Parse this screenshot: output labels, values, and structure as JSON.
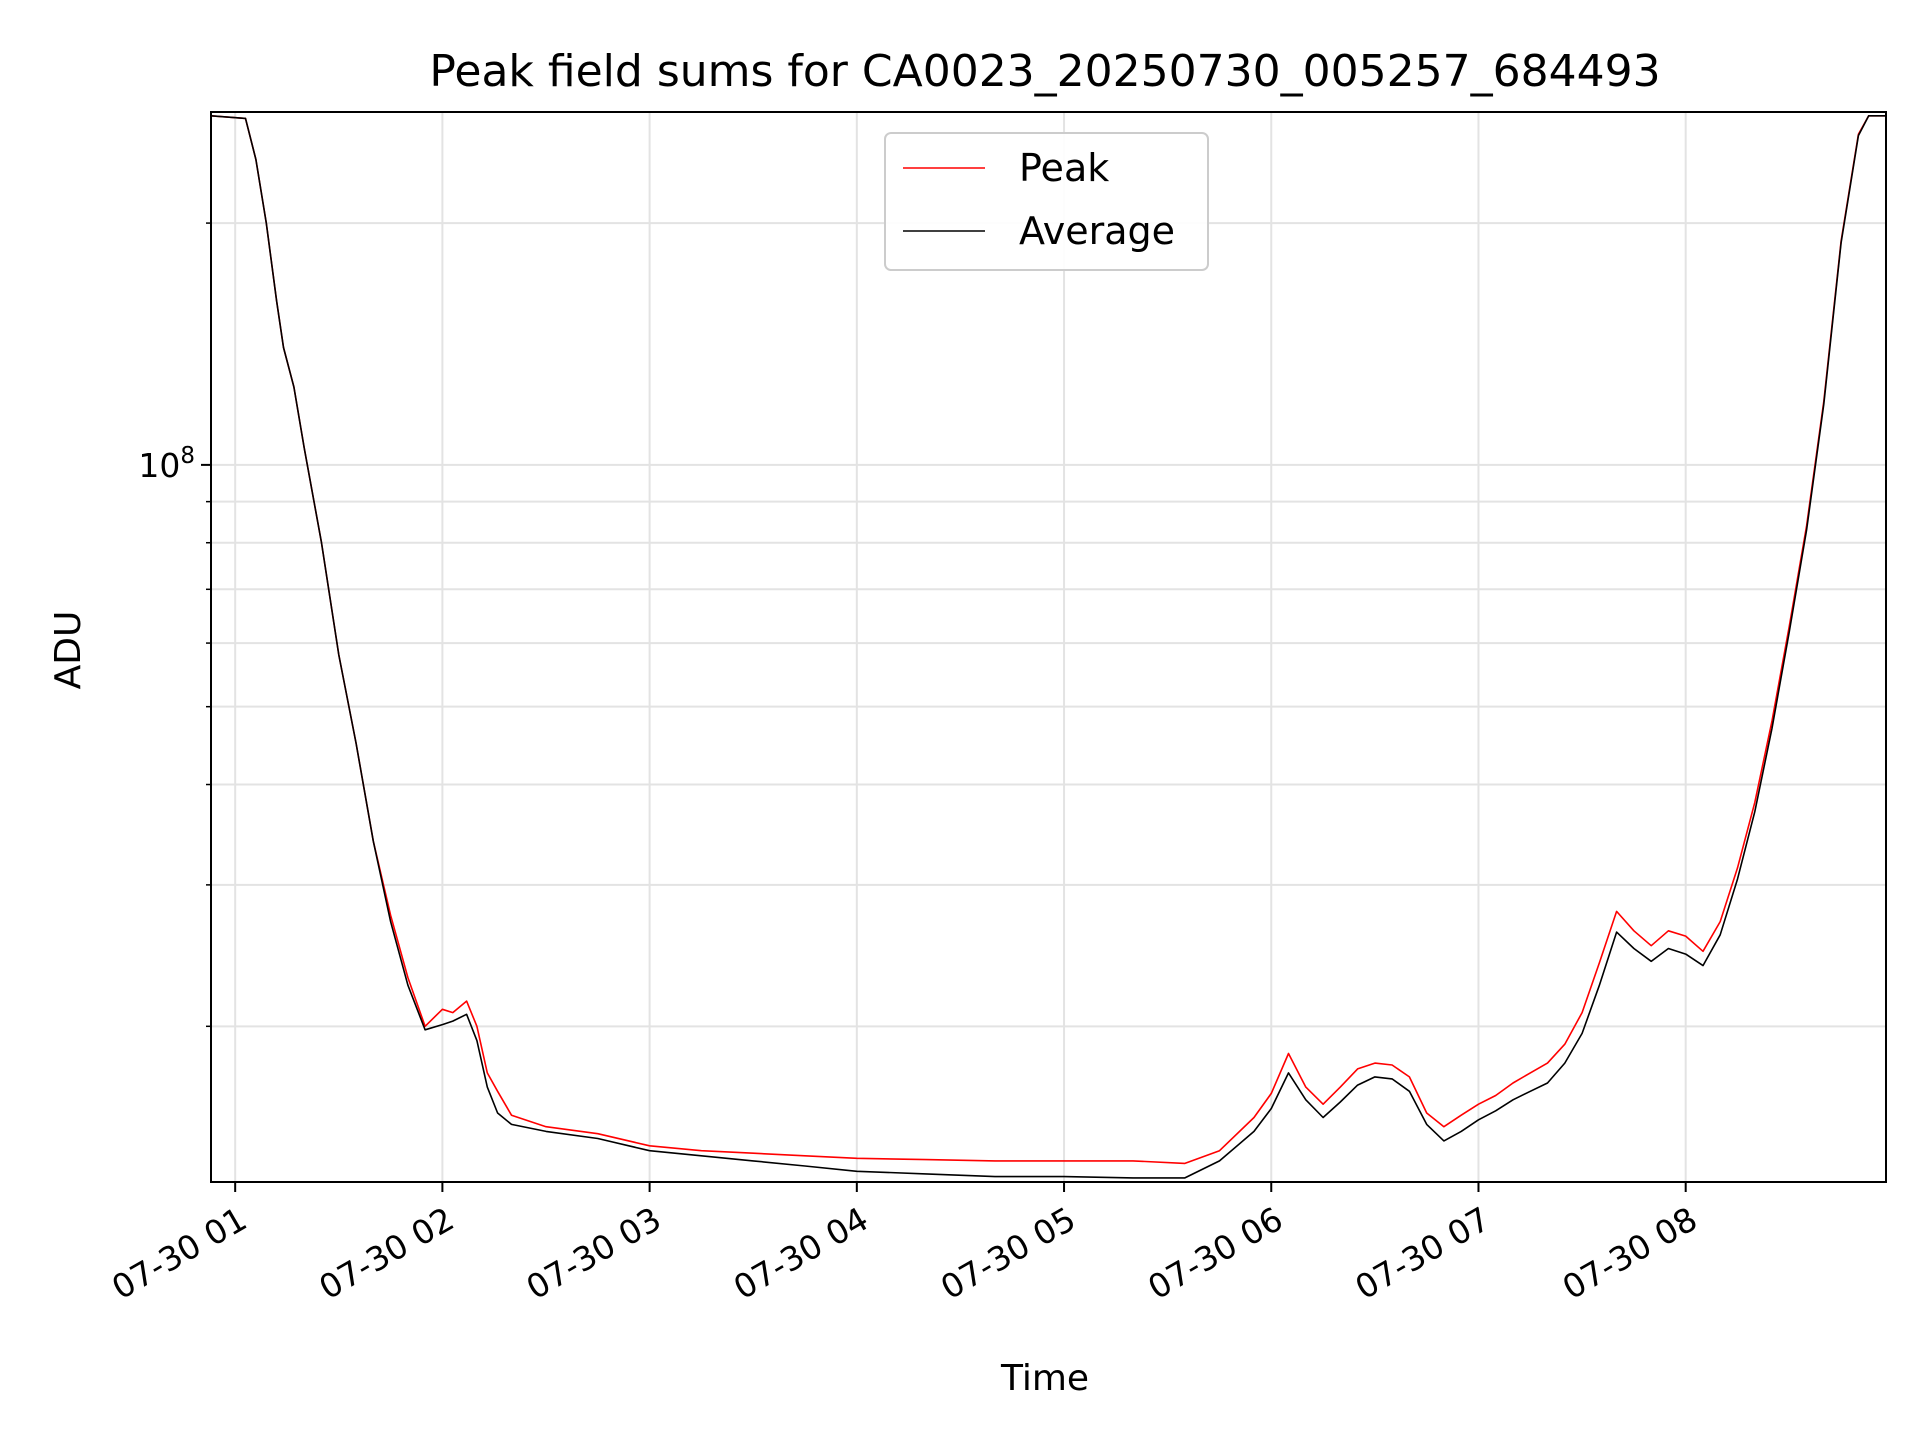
{
  "chart_data": {
    "type": "line",
    "title": "Peak field sums for CA0023_20250730_005257_684493",
    "xlabel": "Time",
    "ylabel": "ADU",
    "y_scale": "log",
    "ylim": [
      12800000,
      275000000
    ],
    "xlim": [
      "2025-07-30T00:53",
      "2025-07-30T08:58"
    ],
    "x_ticks": [
      {
        "t": "2025-07-30T01:00",
        "label": "07-30 01"
      },
      {
        "t": "2025-07-30T02:00",
        "label": "07-30 02"
      },
      {
        "t": "2025-07-30T03:00",
        "label": "07-30 03"
      },
      {
        "t": "2025-07-30T04:00",
        "label": "07-30 04"
      },
      {
        "t": "2025-07-30T05:00",
        "label": "07-30 05"
      },
      {
        "t": "2025-07-30T06:00",
        "label": "07-30 06"
      },
      {
        "t": "2025-07-30T07:00",
        "label": "07-30 07"
      },
      {
        "t": "2025-07-30T08:00",
        "label": "07-30 08"
      }
    ],
    "y_major_ticks": [
      {
        "value": 100000000,
        "label_base": "10",
        "label_exp": "8"
      }
    ],
    "y_minor_ticks": [
      20000000,
      30000000,
      40000000,
      50000000,
      60000000,
      70000000,
      80000000,
      90000000,
      200000000
    ],
    "grid": true,
    "legend_position": "top-center",
    "series": [
      {
        "name": "Peak",
        "color": "#ff0000",
        "points": [
          [
            "2025-07-30T00:53",
            272000000
          ],
          [
            "2025-07-30T01:03",
            270000000
          ],
          [
            "2025-07-30T01:06",
            240000000
          ],
          [
            "2025-07-30T01:09",
            200000000
          ],
          [
            "2025-07-30T01:12",
            160000000
          ],
          [
            "2025-07-30T01:14",
            140000000
          ],
          [
            "2025-07-30T01:17",
            125000000
          ],
          [
            "2025-07-30T01:20",
            105000000
          ],
          [
            "2025-07-30T01:25",
            80000000
          ],
          [
            "2025-07-30T01:30",
            58000000
          ],
          [
            "2025-07-30T01:35",
            45000000
          ],
          [
            "2025-07-30T01:40",
            34000000
          ],
          [
            "2025-07-30T01:45",
            27500000
          ],
          [
            "2025-07-30T01:50",
            23000000
          ],
          [
            "2025-07-30T01:55",
            20000000
          ],
          [
            "2025-07-30T02:00",
            21000000
          ],
          [
            "2025-07-30T02:03",
            20800000
          ],
          [
            "2025-07-30T02:07",
            21500000
          ],
          [
            "2025-07-30T02:10",
            20000000
          ],
          [
            "2025-07-30T02:13",
            17500000
          ],
          [
            "2025-07-30T02:16",
            16600000
          ],
          [
            "2025-07-30T02:20",
            15500000
          ],
          [
            "2025-07-30T02:30",
            15000000
          ],
          [
            "2025-07-30T02:45",
            14700000
          ],
          [
            "2025-07-30T03:00",
            14200000
          ],
          [
            "2025-07-30T03:15",
            14000000
          ],
          [
            "2025-07-30T03:30",
            13900000
          ],
          [
            "2025-07-30T03:45",
            13800000
          ],
          [
            "2025-07-30T04:00",
            13700000
          ],
          [
            "2025-07-30T04:20",
            13650000
          ],
          [
            "2025-07-30T04:40",
            13600000
          ],
          [
            "2025-07-30T05:00",
            13600000
          ],
          [
            "2025-07-30T05:20",
            13600000
          ],
          [
            "2025-07-30T05:35",
            13500000
          ],
          [
            "2025-07-30T05:45",
            14000000
          ],
          [
            "2025-07-30T05:55",
            15400000
          ],
          [
            "2025-07-30T06:00",
            16500000
          ],
          [
            "2025-07-30T06:05",
            18500000
          ],
          [
            "2025-07-30T06:10",
            16800000
          ],
          [
            "2025-07-30T06:15",
            16000000
          ],
          [
            "2025-07-30T06:20",
            16800000
          ],
          [
            "2025-07-30T06:25",
            17700000
          ],
          [
            "2025-07-30T06:30",
            18000000
          ],
          [
            "2025-07-30T06:35",
            17900000
          ],
          [
            "2025-07-30T06:40",
            17300000
          ],
          [
            "2025-07-30T06:45",
            15600000
          ],
          [
            "2025-07-30T06:50",
            15000000
          ],
          [
            "2025-07-30T06:55",
            15500000
          ],
          [
            "2025-07-30T07:00",
            16000000
          ],
          [
            "2025-07-30T07:05",
            16400000
          ],
          [
            "2025-07-30T07:10",
            17000000
          ],
          [
            "2025-07-30T07:15",
            17500000
          ],
          [
            "2025-07-30T07:20",
            18000000
          ],
          [
            "2025-07-30T07:25",
            19000000
          ],
          [
            "2025-07-30T07:30",
            20800000
          ],
          [
            "2025-07-30T07:35",
            24000000
          ],
          [
            "2025-07-30T07:40",
            27800000
          ],
          [
            "2025-07-30T07:45",
            26300000
          ],
          [
            "2025-07-30T07:50",
            25200000
          ],
          [
            "2025-07-30T07:55",
            26300000
          ],
          [
            "2025-07-30T08:00",
            25900000
          ],
          [
            "2025-07-30T08:05",
            24800000
          ],
          [
            "2025-07-30T08:10",
            27000000
          ],
          [
            "2025-07-30T08:15",
            31500000
          ],
          [
            "2025-07-30T08:20",
            38000000
          ],
          [
            "2025-07-30T08:25",
            48000000
          ],
          [
            "2025-07-30T08:30",
            63000000
          ],
          [
            "2025-07-30T08:35",
            84000000
          ],
          [
            "2025-07-30T08:40",
            120000000
          ],
          [
            "2025-07-30T08:45",
            190000000
          ],
          [
            "2025-07-30T08:50",
            258000000
          ],
          [
            "2025-07-30T08:53",
            272000000
          ],
          [
            "2025-07-30T08:58",
            272000000
          ]
        ]
      },
      {
        "name": "Average",
        "color": "#000000",
        "points": [
          [
            "2025-07-30T00:53",
            272000000
          ],
          [
            "2025-07-30T01:03",
            270000000
          ],
          [
            "2025-07-30T01:06",
            240000000
          ],
          [
            "2025-07-30T01:09",
            200000000
          ],
          [
            "2025-07-30T01:12",
            160000000
          ],
          [
            "2025-07-30T01:14",
            140000000
          ],
          [
            "2025-07-30T01:17",
            125000000
          ],
          [
            "2025-07-30T01:20",
            105000000
          ],
          [
            "2025-07-30T01:25",
            80000000
          ],
          [
            "2025-07-30T01:30",
            58000000
          ],
          [
            "2025-07-30T01:35",
            45000000
          ],
          [
            "2025-07-30T01:40",
            34000000
          ],
          [
            "2025-07-30T01:45",
            27000000
          ],
          [
            "2025-07-30T01:50",
            22500000
          ],
          [
            "2025-07-30T01:55",
            19800000
          ],
          [
            "2025-07-30T02:00",
            20100000
          ],
          [
            "2025-07-30T02:03",
            20300000
          ],
          [
            "2025-07-30T02:07",
            20700000
          ],
          [
            "2025-07-30T02:10",
            19200000
          ],
          [
            "2025-07-30T02:13",
            16800000
          ],
          [
            "2025-07-30T02:16",
            15600000
          ],
          [
            "2025-07-30T02:20",
            15100000
          ],
          [
            "2025-07-30T02:30",
            14800000
          ],
          [
            "2025-07-30T02:45",
            14500000
          ],
          [
            "2025-07-30T03:00",
            14000000
          ],
          [
            "2025-07-30T03:15",
            13800000
          ],
          [
            "2025-07-30T03:30",
            13600000
          ],
          [
            "2025-07-30T03:45",
            13400000
          ],
          [
            "2025-07-30T04:00",
            13200000
          ],
          [
            "2025-07-30T04:20",
            13100000
          ],
          [
            "2025-07-30T04:40",
            13000000
          ],
          [
            "2025-07-30T05:00",
            13000000
          ],
          [
            "2025-07-30T05:20",
            12950000
          ],
          [
            "2025-07-30T05:35",
            12950000
          ],
          [
            "2025-07-30T05:45",
            13600000
          ],
          [
            "2025-07-30T05:55",
            14800000
          ],
          [
            "2025-07-30T06:00",
            15800000
          ],
          [
            "2025-07-30T06:05",
            17500000
          ],
          [
            "2025-07-30T06:10",
            16200000
          ],
          [
            "2025-07-30T06:15",
            15400000
          ],
          [
            "2025-07-30T06:20",
            16100000
          ],
          [
            "2025-07-30T06:25",
            16900000
          ],
          [
            "2025-07-30T06:30",
            17300000
          ],
          [
            "2025-07-30T06:35",
            17200000
          ],
          [
            "2025-07-30T06:40",
            16600000
          ],
          [
            "2025-07-30T06:45",
            15100000
          ],
          [
            "2025-07-30T06:50",
            14400000
          ],
          [
            "2025-07-30T06:55",
            14800000
          ],
          [
            "2025-07-30T07:00",
            15300000
          ],
          [
            "2025-07-30T07:05",
            15700000
          ],
          [
            "2025-07-30T07:10",
            16200000
          ],
          [
            "2025-07-30T07:15",
            16600000
          ],
          [
            "2025-07-30T07:20",
            17000000
          ],
          [
            "2025-07-30T07:25",
            18000000
          ],
          [
            "2025-07-30T07:30",
            19600000
          ],
          [
            "2025-07-30T07:35",
            22500000
          ],
          [
            "2025-07-30T07:40",
            26200000
          ],
          [
            "2025-07-30T07:45",
            25000000
          ],
          [
            "2025-07-30T07:50",
            24100000
          ],
          [
            "2025-07-30T07:55",
            25000000
          ],
          [
            "2025-07-30T08:00",
            24600000
          ],
          [
            "2025-07-30T08:05",
            23800000
          ],
          [
            "2025-07-30T08:10",
            26000000
          ],
          [
            "2025-07-30T08:15",
            30500000
          ],
          [
            "2025-07-30T08:20",
            37000000
          ],
          [
            "2025-07-30T08:25",
            47000000
          ],
          [
            "2025-07-30T08:30",
            62000000
          ],
          [
            "2025-07-30T08:35",
            83000000
          ],
          [
            "2025-07-30T08:40",
            119000000
          ],
          [
            "2025-07-30T08:45",
            189000000
          ],
          [
            "2025-07-30T08:50",
            257000000
          ],
          [
            "2025-07-30T08:53",
            272000000
          ],
          [
            "2025-07-30T08:58",
            272000000
          ]
        ]
      }
    ]
  }
}
